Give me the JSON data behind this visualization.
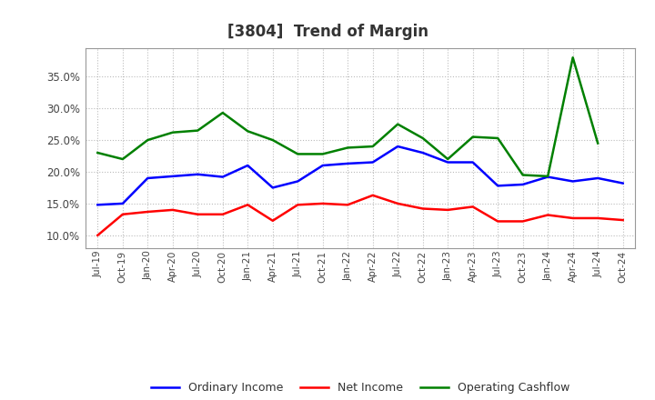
{
  "title": "[3804]  Trend of Margin",
  "x_labels": [
    "Jul-19",
    "Oct-19",
    "Jan-20",
    "Apr-20",
    "Jul-20",
    "Oct-20",
    "Jan-21",
    "Apr-21",
    "Jul-21",
    "Oct-21",
    "Jan-22",
    "Apr-22",
    "Jul-22",
    "Oct-22",
    "Jan-23",
    "Apr-23",
    "Jul-23",
    "Oct-23",
    "Jan-24",
    "Apr-24",
    "Jul-24",
    "Oct-24"
  ],
  "ordinary_income": [
    0.148,
    0.15,
    0.19,
    0.193,
    0.196,
    0.192,
    0.21,
    0.175,
    0.185,
    0.21,
    0.213,
    0.215,
    0.24,
    0.23,
    0.215,
    0.215,
    0.178,
    0.18,
    0.192,
    0.185,
    0.19,
    0.182
  ],
  "net_income": [
    0.1,
    0.133,
    0.137,
    0.14,
    0.133,
    0.133,
    0.148,
    0.123,
    0.148,
    0.15,
    0.148,
    0.163,
    0.15,
    0.142,
    0.14,
    0.145,
    0.122,
    0.122,
    0.132,
    0.127,
    0.127,
    0.124
  ],
  "operating_cashflow": [
    0.23,
    0.22,
    0.25,
    0.262,
    0.265,
    0.293,
    0.264,
    0.25,
    0.228,
    0.228,
    0.238,
    0.24,
    0.275,
    0.253,
    0.22,
    0.255,
    0.253,
    0.195,
    0.193,
    0.38,
    0.245,
    null
  ],
  "line_colors": {
    "ordinary_income": "#0000FF",
    "net_income": "#FF0000",
    "operating_cashflow": "#008000"
  },
  "ylim": [
    0.08,
    0.395
  ],
  "yticks": [
    0.1,
    0.15,
    0.2,
    0.25,
    0.3,
    0.35
  ],
  "background_color": "#FFFFFF",
  "grid_color": "#AAAAAA",
  "legend_labels": [
    "Ordinary Income",
    "Net Income",
    "Operating Cashflow"
  ],
  "title_color": "#333333"
}
